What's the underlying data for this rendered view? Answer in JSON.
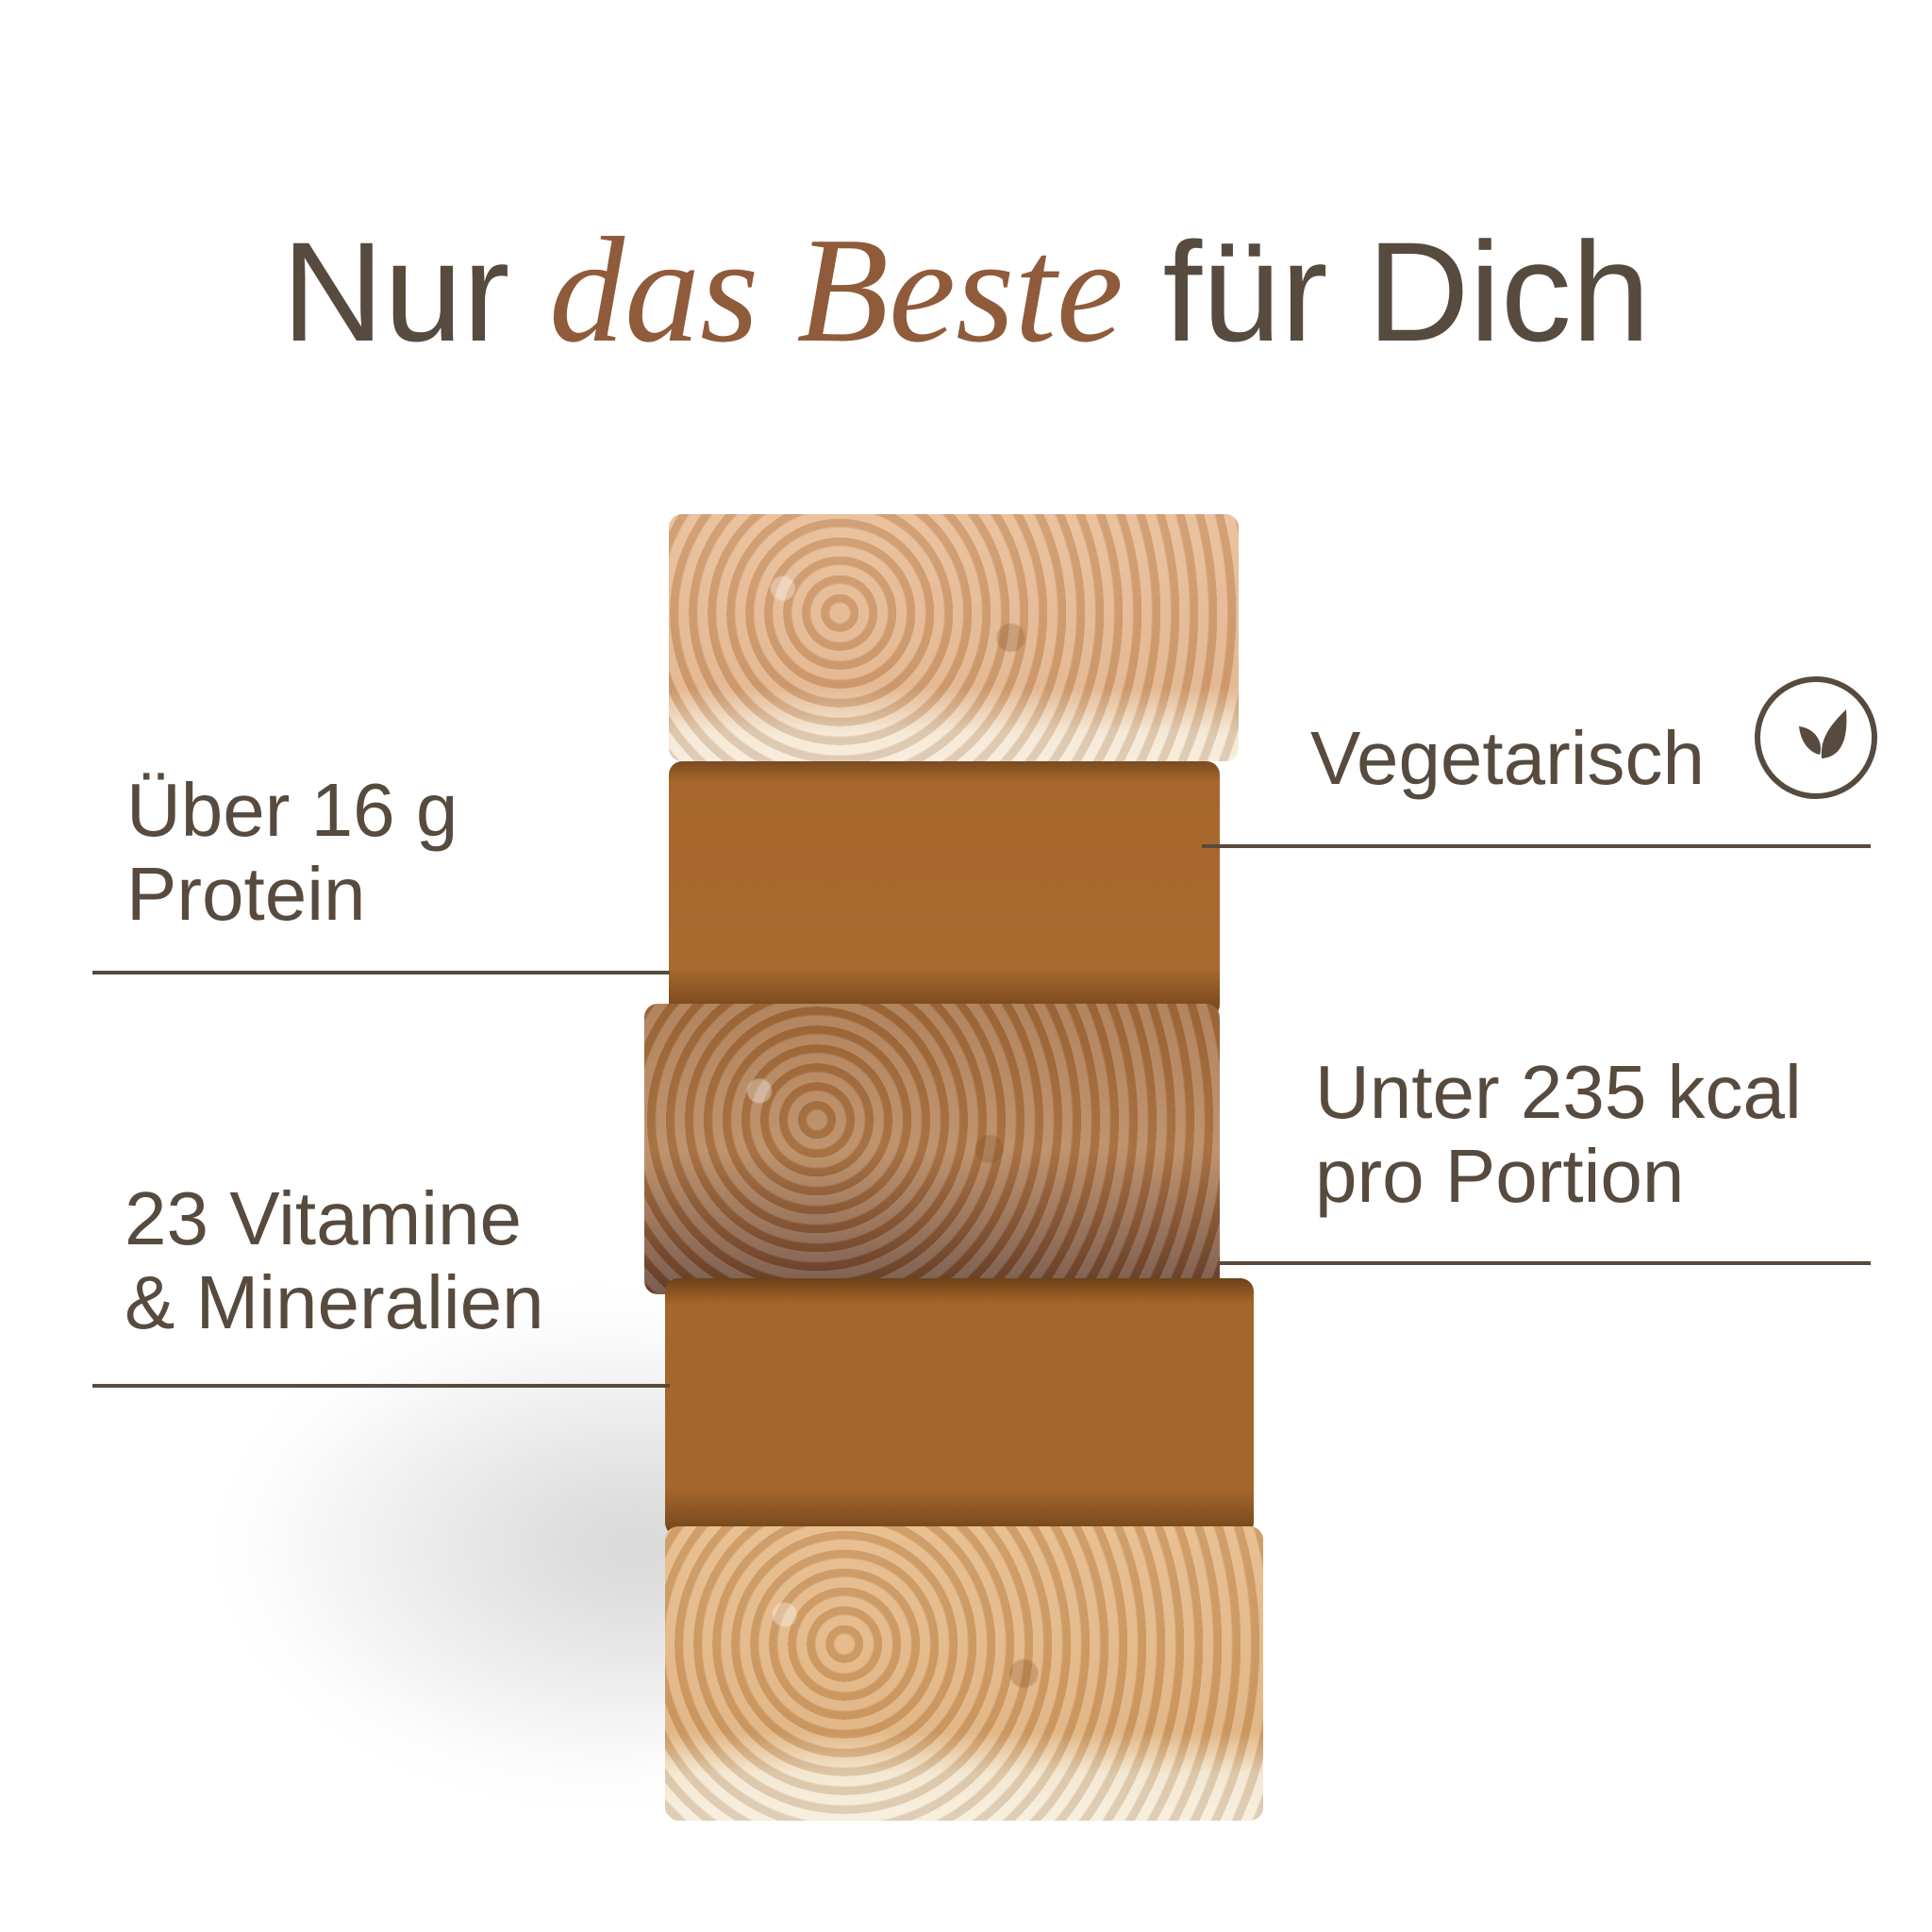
{
  "title": {
    "pre": "Nur",
    "accent": "das Beste",
    "post": "für Dich"
  },
  "features": {
    "protein": {
      "line1": "Über 16 g",
      "line2": "Protein"
    },
    "vitamins": {
      "line1": "23 Vitamine",
      "line2": "& Mineralien"
    },
    "vegetarian": {
      "label": "Vegetarisch",
      "icon": "leaf-icon"
    },
    "calories": {
      "line1": "Unter 235 kcal",
      "line2": "pro Portion"
    }
  },
  "colors": {
    "text": "#574a3e",
    "accent": "#8f5b3b",
    "background": "#ffffff"
  }
}
